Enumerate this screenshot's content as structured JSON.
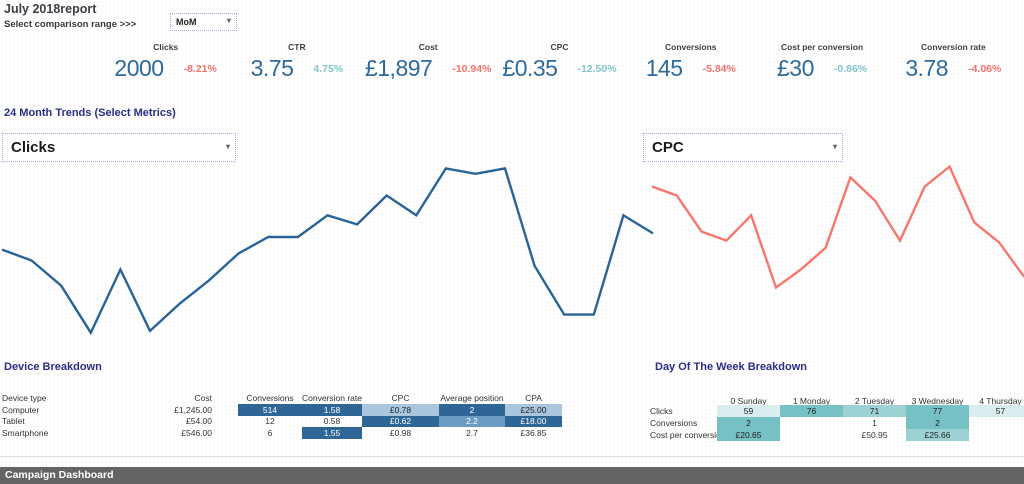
{
  "header": {
    "title": "July 2018report",
    "comparison_label": "Select comparison range >>>",
    "comparison_value": "MoM"
  },
  "icons": {
    "chevron_down": "▾"
  },
  "colors": {
    "kpi_value_blue": "#2f6a9d",
    "delta_negative_red": "#f4736d",
    "delta_positive_teal": "#82c7cd",
    "clicks_line": "#2a6496",
    "cpc_line": "#f8766d",
    "table_dark_blue": "#2e6695",
    "table_mid_blue": "#6d9cc2",
    "table_light_blue": "#a9c6de",
    "teal_medium": "#76c1c4",
    "teal_light": "#9dd2d4",
    "teal_verylight": "#d9edee",
    "section_title_indigo": "#2d2d87",
    "footer_gray": "#646464"
  },
  "kpis": [
    {
      "label": "Clicks",
      "value": "2000",
      "delta": "-8.21%",
      "delta_color": "#f4736d"
    },
    {
      "label": "CTR",
      "value": "3.75",
      "delta": "4.75%",
      "delta_color": "#82c7cd"
    },
    {
      "label": "Cost",
      "value": "£1,897",
      "delta": "-10.94%",
      "delta_color": "#f4736d"
    },
    {
      "label": "CPC",
      "value": "£0.35",
      "delta": "-12.50%",
      "delta_color": "#82c7cd"
    },
    {
      "label": "Conversions",
      "value": "145",
      "delta": "-5.84%",
      "delta_color": "#f4736d"
    },
    {
      "label": "Cost per conversion",
      "value": "£30",
      "delta": "-0.86%",
      "delta_color": "#82c7cd"
    },
    {
      "label": "Conversion rate",
      "value": "3.78",
      "delta": "-4.06%",
      "delta_color": "#f4736d"
    }
  ],
  "trends": {
    "section_title": "24 Month Trends (Select Metrics)",
    "left_metric": "Clicks",
    "right_metric": "CPC"
  },
  "chart_data": [
    {
      "slot": "left",
      "type": "line",
      "title": "24 Month Trends - Clicks",
      "series": [
        {
          "name": "Clicks",
          "values": [
            52,
            46,
            32,
            6,
            41,
            7,
            22,
            35,
            50,
            59,
            59,
            71,
            66,
            82,
            71,
            97,
            94,
            97,
            43,
            16,
            16,
            71,
            61
          ]
        }
      ],
      "color": "#2a6496",
      "xlabel": "",
      "ylabel": "",
      "note": "sparkline, no axes or tick labels shown; values are relative 0-100 estimates",
      "legend": "none",
      "grid": false
    },
    {
      "slot": "right",
      "type": "line",
      "title": "24 Month Trends - CPC",
      "series": [
        {
          "name": "CPC",
          "values": [
            87,
            82,
            62,
            57,
            71,
            31,
            41,
            53,
            92,
            79,
            57,
            87,
            98,
            67,
            56,
            37
          ]
        }
      ],
      "color": "#f8766d",
      "xlabel": "",
      "ylabel": "",
      "note": "sparkline, no axes shown, line clipped at right screen edge; values are relative 0-100 estimates",
      "legend": "none",
      "grid": false
    }
  ],
  "device_breakdown": {
    "title": "Device Breakdown",
    "columns": [
      "Device type",
      "Cost",
      "Conversions",
      "Conversion rate",
      "CPC",
      "Average position",
      "CPA"
    ],
    "rows": [
      {
        "label": "Computer",
        "cells": [
          {
            "t": "£1,245.00",
            "bg": "none"
          },
          {
            "t": "514",
            "bg": "dark"
          },
          {
            "t": "1.58",
            "bg": "dark"
          },
          {
            "t": "£0.78",
            "bg": "light"
          },
          {
            "t": "2",
            "bg": "dark"
          },
          {
            "t": "£25.00",
            "bg": "light"
          }
        ]
      },
      {
        "label": "Tablet",
        "cells": [
          {
            "t": "£54.00",
            "bg": "none"
          },
          {
            "t": "12",
            "bg": "none"
          },
          {
            "t": "0.58",
            "bg": "none"
          },
          {
            "t": "£0.62",
            "bg": "dark"
          },
          {
            "t": "2.2",
            "bg": "mid"
          },
          {
            "t": "£18.00",
            "bg": "dark"
          }
        ]
      },
      {
        "label": "Smartphone",
        "cells": [
          {
            "t": "£546.00",
            "bg": "none"
          },
          {
            "t": "6",
            "bg": "none"
          },
          {
            "t": "1.55",
            "bg": "dark"
          },
          {
            "t": "£0.98",
            "bg": "none"
          },
          {
            "t": "2.7",
            "bg": "none"
          },
          {
            "t": "£36.85",
            "bg": "none"
          }
        ]
      }
    ]
  },
  "day_breakdown": {
    "title": "Day Of The Week Breakdown",
    "columns": [
      "0 Sunday",
      "1 Monday",
      "2 Tuesday",
      "3 Wednesday",
      "4 Thursday"
    ],
    "rows": [
      {
        "label": "Clicks",
        "cells": [
          {
            "t": "59",
            "bg": "vlight"
          },
          {
            "t": "76",
            "bg": "med"
          },
          {
            "t": "71",
            "bg": "light"
          },
          {
            "t": "77",
            "bg": "med"
          },
          {
            "t": "57",
            "bg": "vlight"
          }
        ]
      },
      {
        "label": "Conversions",
        "cells": [
          {
            "t": "2",
            "bg": "med"
          },
          {
            "t": "",
            "bg": "none"
          },
          {
            "t": "1",
            "bg": "none"
          },
          {
            "t": "2",
            "bg": "med"
          },
          {
            "t": "",
            "bg": "none"
          }
        ]
      },
      {
        "label": "Cost per conversion",
        "cells": [
          {
            "t": "£20.65",
            "bg": "med"
          },
          {
            "t": "",
            "bg": "none"
          },
          {
            "t": "£50.95",
            "bg": "none"
          },
          {
            "t": "£25.66",
            "bg": "light"
          },
          {
            "t": "",
            "bg": "none"
          }
        ]
      }
    ]
  },
  "footer": {
    "label": "Campaign Dashboard"
  }
}
